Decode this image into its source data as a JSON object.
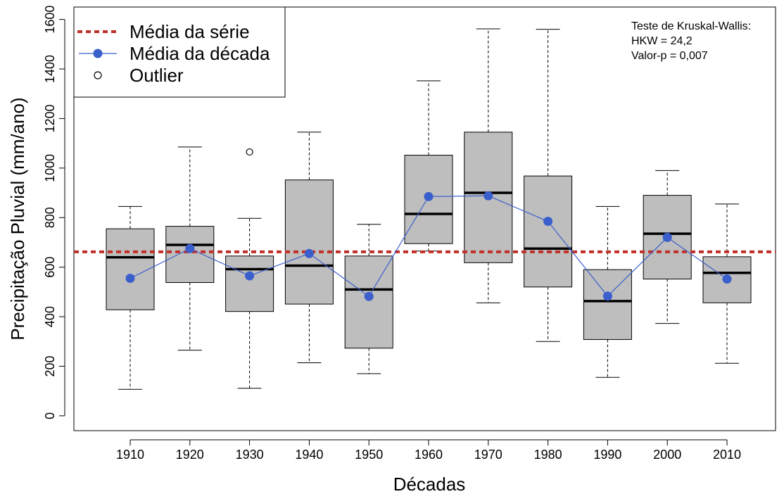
{
  "chart_data": {
    "type": "box",
    "title": "",
    "xlabel": "Décadas",
    "ylabel": "Precipitação Pluvial (mm/ano)",
    "ylim": [
      -60,
      1650
    ],
    "yticks": [
      0,
      200,
      400,
      600,
      800,
      1000,
      1200,
      1400,
      1600
    ],
    "categories": [
      "1910",
      "1920",
      "1930",
      "1940",
      "1950",
      "1960",
      "1970",
      "1980",
      "1990",
      "2000",
      "2010"
    ],
    "boxes": [
      {
        "min": 107,
        "q1": 428,
        "median": 640,
        "q3": 755,
        "max": 845,
        "outliers": []
      },
      {
        "min": 265,
        "q1": 538,
        "median": 690,
        "q3": 765,
        "max": 1085,
        "outliers": []
      },
      {
        "min": 111,
        "q1": 421,
        "median": 592,
        "q3": 645,
        "max": 797,
        "outliers": [
          1065
        ]
      },
      {
        "min": 214,
        "q1": 451,
        "median": 606,
        "q3": 952,
        "max": 1145,
        "outliers": []
      },
      {
        "min": 170,
        "q1": 273,
        "median": 510,
        "q3": 645,
        "max": 773,
        "outliers": []
      },
      {
        "min": 665,
        "q1": 695,
        "median": 815,
        "q3": 1052,
        "max": 1352,
        "outliers": []
      },
      {
        "min": 456,
        "q1": 618,
        "median": 900,
        "q3": 1145,
        "max": 1562,
        "outliers": []
      },
      {
        "min": 300,
        "q1": 520,
        "median": 675,
        "q3": 968,
        "max": 1560,
        "outliers": []
      },
      {
        "min": 155,
        "q1": 308,
        "median": 463,
        "q3": 590,
        "max": 845,
        "outliers": []
      },
      {
        "min": 373,
        "q1": 552,
        "median": 735,
        "q3": 890,
        "max": 990,
        "outliers": []
      },
      {
        "min": 212,
        "q1": 456,
        "median": 577,
        "q3": 642,
        "max": 855,
        "outliers": []
      }
    ],
    "decade_means": [
      555,
      675,
      565,
      655,
      482,
      885,
      888,
      785,
      483,
      720,
      552
    ],
    "series_mean": 662,
    "legend": {
      "position": "top-left",
      "items": [
        {
          "label": "Média da série",
          "kind": "dashed-line",
          "color": "#c0302a"
        },
        {
          "label": "Média da década",
          "kind": "line-point",
          "color": "#3a5fcd"
        },
        {
          "label": "Outlier",
          "kind": "open-circle",
          "color": "#000000"
        }
      ]
    },
    "annotation": [
      "Teste de Kruskal-Wallis:",
      "HKW = 24,2",
      "Valor-p = 0,007"
    ],
    "box_fill": "#bebebe",
    "grid": false
  }
}
